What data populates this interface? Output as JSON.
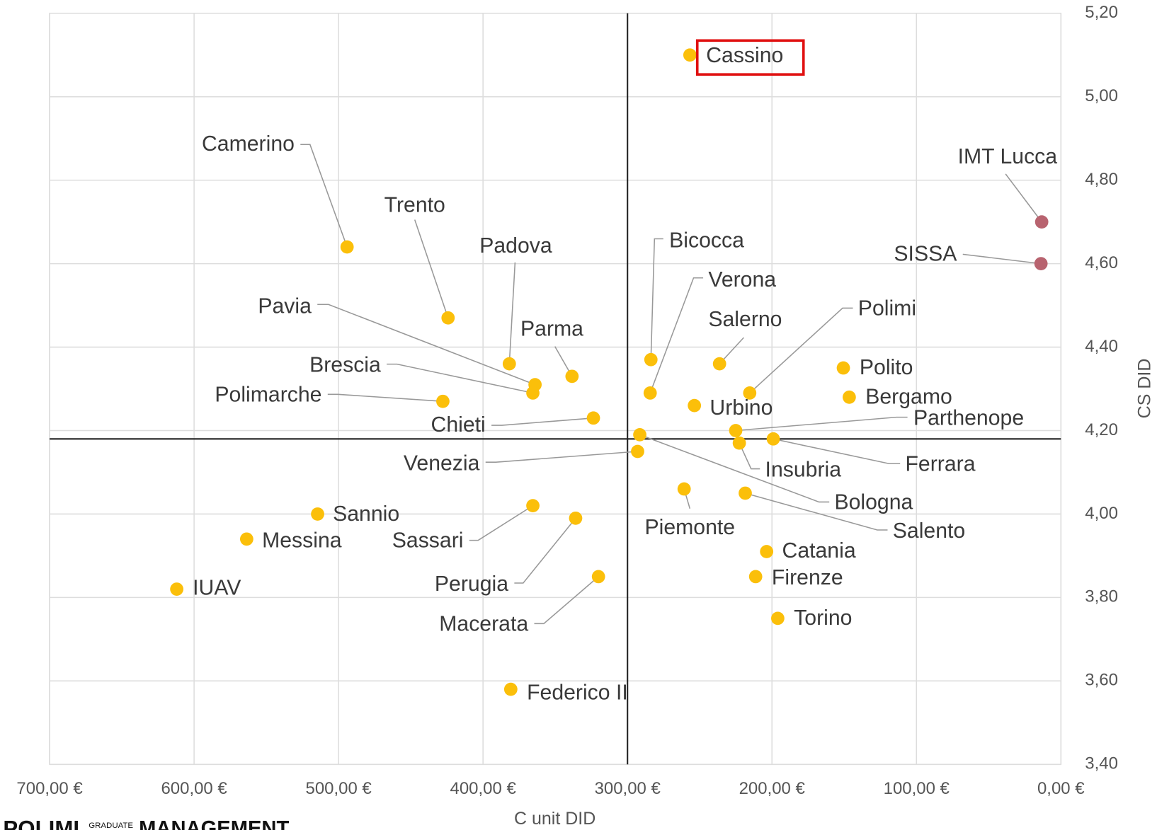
{
  "chart_data": {
    "type": "scatter",
    "x_label": "C unit DID",
    "y_label": "CS DID",
    "xlim": [
      700,
      0
    ],
    "ylim": [
      3.4,
      5.2
    ],
    "xticks": [
      {
        "value": 700,
        "label": "700,00 €"
      },
      {
        "value": 600,
        "label": "600,00 €"
      },
      {
        "value": 500,
        "label": "500,00 €"
      },
      {
        "value": 400,
        "label": "400,00 €"
      },
      {
        "value": 300,
        "label": "300,00 €"
      },
      {
        "value": 200,
        "label": "200,00 €"
      },
      {
        "value": 100,
        "label": "100,00 €"
      },
      {
        "value": 0,
        "label": "0,00 €"
      }
    ],
    "yticks": [
      {
        "value": 3.4,
        "label": "3,40"
      },
      {
        "value": 3.6,
        "label": "3,60"
      },
      {
        "value": 3.8,
        "label": "3,80"
      },
      {
        "value": 4.0,
        "label": "4,00"
      },
      {
        "value": 4.2,
        "label": "4,20"
      },
      {
        "value": 4.4,
        "label": "4,40"
      },
      {
        "value": 4.6,
        "label": "4,60"
      },
      {
        "value": 4.8,
        "label": "4,80"
      },
      {
        "value": 5.0,
        "label": "5,00"
      },
      {
        "value": 5.2,
        "label": "5,20"
      }
    ],
    "grid": true,
    "reference_lines": {
      "x": 300,
      "y": 4.18
    },
    "point_labels": [
      "Cassino",
      "IMT Lucca",
      "SISSA",
      "Camerino",
      "Trento",
      "Padova",
      "Pavia",
      "Brescia",
      "Parma",
      "Polimarche",
      "Chieti",
      "Bicocca",
      "Verona",
      "Salerno",
      "Polimi",
      "Polito",
      "Bergamo",
      "Urbino",
      "Parthenope",
      "Ferrara",
      "Insubria",
      "Bologna",
      "Venezia",
      "Piemonte",
      "Salento",
      "Sannio",
      "Messina",
      "Sassari",
      "Perugia",
      "Macerata",
      "IUAV",
      "Catania",
      "Firenze",
      "Torino",
      "Federico II"
    ],
    "x": [
      256.8,
      13.3,
      13.8,
      494.1,
      424.2,
      381.8,
      364.0,
      365.5,
      338.4,
      427.8,
      323.6,
      283.8,
      284.3,
      236.3,
      215.4,
      150.6,
      146.5,
      253.7,
      225.1,
      199.1,
      222.6,
      291.5,
      293.0,
      260.8,
      218.5,
      514.5,
      563.6,
      365.5,
      335.9,
      320.1,
      612.0,
      203.7,
      211.3,
      196.0,
      380.8
    ],
    "values": [
      5.1,
      4.7,
      4.6,
      4.64,
      4.47,
      4.36,
      4.31,
      4.29,
      4.33,
      4.27,
      4.23,
      4.37,
      4.29,
      4.36,
      4.29,
      4.35,
      4.28,
      4.26,
      4.2,
      4.18,
      4.17,
      4.19,
      4.15,
      4.06,
      4.05,
      4.0,
      3.94,
      4.02,
      3.99,
      3.85,
      3.82,
      3.91,
      3.85,
      3.75,
      3.58
    ],
    "colors": [
      "#fbbf0a",
      "#b8636f",
      "#b8636f",
      "#fbbf0a",
      "#fbbf0a",
      "#fbbf0a",
      "#fbbf0a",
      "#fbbf0a",
      "#fbbf0a",
      "#fbbf0a",
      "#fbbf0a",
      "#fbbf0a",
      "#fbbf0a",
      "#fbbf0a",
      "#fbbf0a",
      "#fbbf0a",
      "#fbbf0a",
      "#fbbf0a",
      "#fbbf0a",
      "#fbbf0a",
      "#fbbf0a",
      "#fbbf0a",
      "#fbbf0a",
      "#fbbf0a",
      "#fbbf0a",
      "#fbbf0a",
      "#fbbf0a",
      "#fbbf0a",
      "#fbbf0a",
      "#fbbf0a",
      "#fbbf0a",
      "#fbbf0a",
      "#fbbf0a",
      "#fbbf0a",
      "#fbbf0a"
    ]
  },
  "logo": {
    "brand": "POLIMI",
    "sub": "GRADUATE",
    "name": "MANAGEMENT"
  }
}
